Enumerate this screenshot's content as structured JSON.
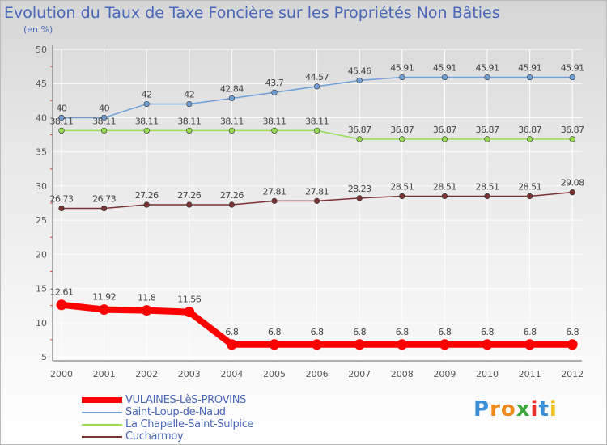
{
  "chart_data": {
    "type": "line",
    "title": "Evolution du Taux de Taxe Foncière sur les Propriétés Non Bâties",
    "ylabel": "(en %)",
    "xlabel": "",
    "ylim": [
      5,
      50
    ],
    "yticks": [
      "5",
      "10",
      "15",
      "20",
      "25",
      "30",
      "35",
      "40",
      "45",
      "50"
    ],
    "categories": [
      "2000",
      "2001",
      "2002",
      "2003",
      "2004",
      "2005",
      "2006",
      "2007",
      "2008",
      "2009",
      "2010",
      "2011",
      "2012"
    ],
    "series": [
      {
        "name": "VULAINES-LèS-PROVINS",
        "color": "#ff0000",
        "values": [
          12.61,
          11.92,
          11.8,
          11.56,
          6.8,
          6.8,
          6.8,
          6.8,
          6.8,
          6.8,
          6.8,
          6.8,
          6.8
        ],
        "labels": [
          "12.61",
          "11.92",
          "11.8",
          "11.56",
          "6.8",
          "6.8",
          "6.8",
          "6.8",
          "6.8",
          "6.8",
          "6.8",
          "6.8",
          "6.8"
        ]
      },
      {
        "name": "Saint-Loup-de-Naud",
        "color": "#6fa0d8",
        "values": [
          40,
          40,
          42,
          42,
          42.84,
          43.7,
          44.57,
          45.46,
          45.91,
          45.91,
          45.91,
          45.91,
          45.91
        ],
        "labels": [
          "40",
          "40",
          "42",
          "42",
          "42.84",
          "43.7",
          "44.57",
          "45.46",
          "45.91",
          "45.91",
          "45.91",
          "45.91",
          "45.91"
        ]
      },
      {
        "name": "La Chapelle-Saint-Sulpice",
        "color": "#99dd55",
        "values": [
          38.11,
          38.11,
          38.11,
          38.11,
          38.11,
          38.11,
          38.11,
          36.87,
          36.87,
          36.87,
          36.87,
          36.87,
          36.87
        ],
        "labels": [
          "38.11",
          "38.11",
          "38.11",
          "38.11",
          "38.11",
          "38.11",
          "38.11",
          "36.87",
          "36.87",
          "36.87",
          "36.87",
          "36.87",
          "36.87"
        ]
      },
      {
        "name": "Cucharmoy",
        "color": "#7a3333",
        "values": [
          26.73,
          26.73,
          27.26,
          27.26,
          27.26,
          27.81,
          27.81,
          28.23,
          28.51,
          28.51,
          28.51,
          28.51,
          29.08
        ],
        "labels": [
          "26.73",
          "26.73",
          "27.26",
          "27.26",
          "27.26",
          "27.81",
          "27.81",
          "28.23",
          "28.51",
          "28.51",
          "28.51",
          "28.51",
          "29.08"
        ]
      }
    ]
  },
  "logo": {
    "letters": [
      "P",
      "r",
      "o",
      "x",
      "i",
      "t",
      "i"
    ],
    "colors": [
      "#3a8fd8",
      "#f08a1a",
      "#f08a1a",
      "#3aa83a",
      "#e83030",
      "#3a8fd8",
      "#f0c020"
    ]
  }
}
